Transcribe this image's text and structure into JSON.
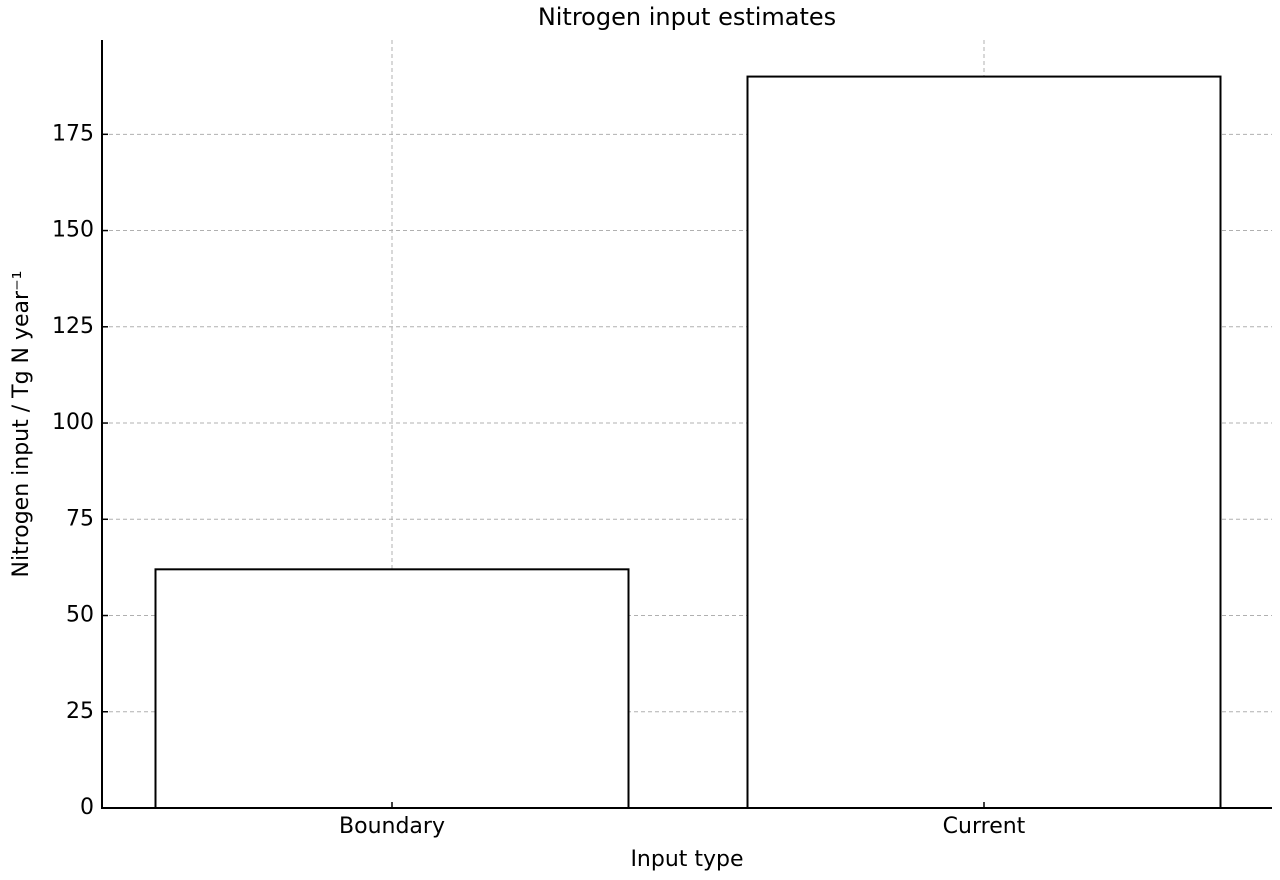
{
  "chart_data": {
    "type": "bar",
    "title": "Nitrogen input estimates",
    "x_label": "Input type",
    "y_label": "Nitrogen input / Tg N year⁻¹",
    "categories": [
      "Boundary",
      "Current"
    ],
    "values": [
      62,
      190
    ],
    "color": "#ffffff",
    "edge_color": "#000000",
    "ylim": [
      0,
      199.5
    ],
    "yticks": [
      0,
      25,
      50,
      75,
      100,
      125,
      150,
      175
    ],
    "grid": true
  }
}
